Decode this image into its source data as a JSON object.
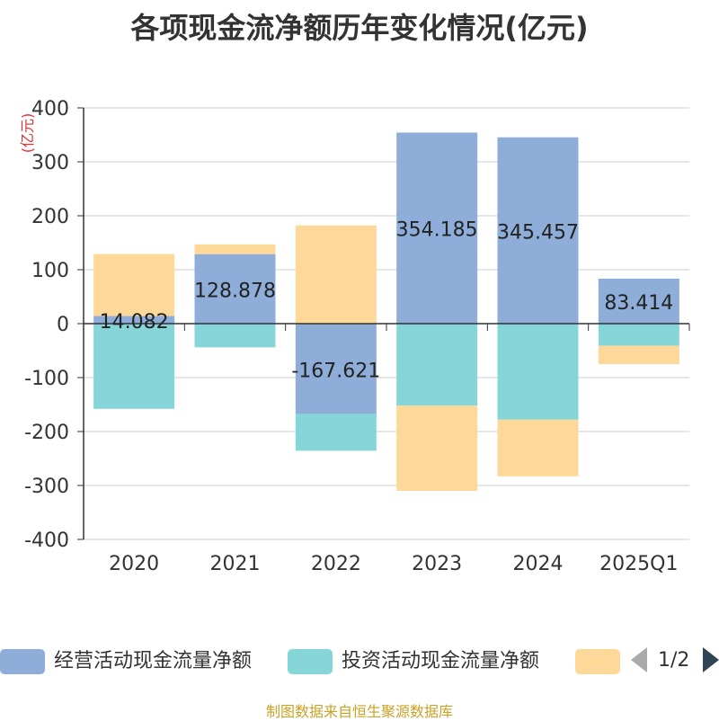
{
  "chart_data": {
    "type": "bar",
    "stacked": true,
    "title": "各项现金流净额历年变化情况(亿元)",
    "ylabel": "(亿元)",
    "xlabel": "",
    "ylim": [
      -400,
      400
    ],
    "yticks": [
      400,
      300,
      200,
      100,
      0,
      -100,
      -200,
      -300,
      -400
    ],
    "categories": [
      "2020",
      "2021",
      "2022",
      "2023",
      "2024",
      "2025Q1"
    ],
    "series": [
      {
        "name": "经营活动现金流量净额",
        "color": "#8eaed9",
        "values": [
          14.082,
          128.878,
          -167.621,
          354.185,
          345.457,
          83.414
        ],
        "labels": [
          "14.082",
          "128.878",
          "-167.621",
          "354.185",
          "345.457",
          "83.414"
        ]
      },
      {
        "name": "投资活动现金流量净额",
        "color": "#86d5d8",
        "values": [
          -158,
          -44,
          -68,
          -152,
          -178,
          -41
        ]
      },
      {
        "name": "",
        "color": "#fdd899",
        "values": [
          115,
          18,
          182,
          -158,
          -105,
          -34
        ]
      }
    ],
    "grid": true,
    "legend_position": "bottom"
  },
  "legend": {
    "page": "1/2"
  },
  "source": "制图数据来自恒生聚源数据库"
}
